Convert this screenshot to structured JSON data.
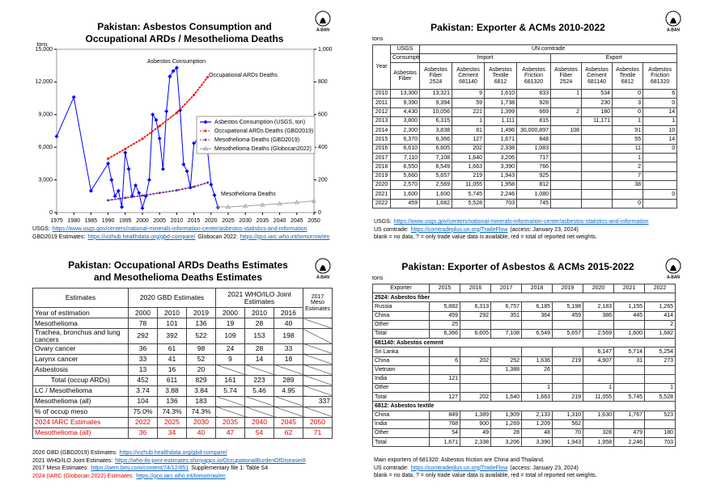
{
  "logo": "A-BAN",
  "chart_data": {
    "type": "line",
    "title": [
      "Pakistan: Asbestos Consumption and",
      "Occupational ARDs / Mesothelioma Deaths"
    ],
    "y_label": "tons",
    "xlim": [
      1975,
      2050
    ],
    "xticks": [
      1975,
      1980,
      1985,
      1990,
      1995,
      2000,
      2005,
      2010,
      2015,
      2020,
      2025,
      2030,
      2035,
      2040,
      2045,
      2050
    ],
    "ylim": [
      0,
      15000
    ],
    "yticks": [
      0,
      {
        "value": 3000,
        "label": "3,000"
      },
      {
        "value": 6000,
        "label": "6,000"
      },
      {
        "value": 9000,
        "label": "9,000"
      },
      {
        "value": 12000,
        "label": "12,000"
      },
      {
        "value": 15000,
        "label": "15,000"
      }
    ],
    "y2lim": [
      0,
      1000
    ],
    "y2ticks": [
      0,
      200,
      400,
      600,
      800,
      {
        "value": 1000,
        "label": "1,000"
      }
    ],
    "grid": false,
    "legend": "right",
    "annotations": [
      "Asbestos Consumption",
      "Occupational ARDs Deaths",
      "Mesothelioma Deaths"
    ],
    "series": [
      {
        "name": "Asbestos Consumption (USGS, ton)",
        "color": "#0000ff",
        "marker": "diamond",
        "line_style": "solid",
        "x": [
          1975,
          1980,
          1985,
          1990,
          1991,
          1992,
          1993,
          1994,
          1995,
          1996,
          1997,
          1998,
          1999,
          2000,
          2001,
          2002,
          2003,
          2004,
          2005,
          2006,
          2007,
          2008,
          2009,
          2010,
          2011,
          2012,
          2013,
          2014,
          2015,
          2016,
          2017,
          2018,
          2019,
          2020,
          2021,
          2022
        ],
        "values": [
          7000,
          10600,
          2000,
          4500,
          3000,
          1500,
          2000,
          500,
          5500,
          4000,
          1500,
          2500,
          1800,
          400,
          1500,
          3000,
          9000,
          8500,
          6800,
          4000,
          9300,
          12500,
          13000,
          13300,
          9390,
          4430,
          3800,
          2300,
          6370,
          6610,
          7110,
          6550,
          5660,
          2570,
          1600,
          459
        ]
      },
      {
        "name": "Occupational ARDs Deaths (GBD2019)",
        "color": "#ff0000",
        "marker": "circle",
        "line_style": "dotted",
        "axis": "y2",
        "x": [
          1990,
          1995,
          2000,
          2005,
          2010,
          2015,
          2019
        ],
        "values": [
          330,
          390,
          452,
          530,
          611,
          720,
          829
        ]
      },
      {
        "name": "Mesothelioma Deaths (GBD2019)",
        "color": "#7030a0",
        "marker": "circle",
        "line_style": "dotted",
        "axis": "y2",
        "x": [
          1990,
          1995,
          2000,
          2005,
          2010,
          2015,
          2019
        ],
        "values": [
          75,
          90,
          104,
          120,
          136,
          158,
          183
        ]
      },
      {
        "name": "Mesothelioma Deaths (Globocan2022)",
        "color": "#a0a0a0",
        "marker": "triangle",
        "line_style": "solid",
        "axis": "y2",
        "x": [
          2022,
          2025,
          2030,
          2035,
          2040,
          2045,
          2050
        ],
        "values": [
          36,
          34,
          40,
          47,
          54,
          62,
          71
        ]
      }
    ],
    "notes": [
      {
        "parts": [
          {
            "t": "USGS:"
          },
          {
            "u": "https://www.usgs.gov/centers/national-minerals-information-center/asbestos-statistics-and-information"
          }
        ]
      },
      {
        "parts": [
          {
            "t": "GBD2019 Estimates:"
          },
          {
            "u": "https://vizhub.healthdata.org/gbd-compare/"
          },
          {
            "t": "Globocan 2022:"
          },
          {
            "u": "https://gco.iarc.who.int/tomorrow/en"
          }
        ]
      }
    ]
  },
  "exports_table": {
    "title": "Pakistan: Exporter & ACMs 2010-2022",
    "unit": "tons",
    "col_year": "Year",
    "usgs": "USGS",
    "un": "UN comtrade",
    "consumption": "Consumption",
    "import": "Import",
    "export": "Export",
    "usgs_col": "Asbestos Fiber",
    "columns": [
      {
        "name": "Asbestos Fiber",
        "code": "2524"
      },
      {
        "name": "Asbestos Cement",
        "code": "681140"
      },
      {
        "name": "Asbestos Textile",
        "code": "6812"
      },
      {
        "name": "Asbestos Friction",
        "code": "681320"
      }
    ],
    "rows": [
      [
        "2010",
        "13,300",
        "13,321",
        "9",
        "1,610",
        "833",
        "1",
        "534",
        "0",
        "6"
      ],
      [
        "2011",
        "9,390",
        "9,394",
        "59",
        "1,738",
        "928",
        null,
        "230",
        "3",
        "0"
      ],
      [
        "2012",
        "4,430",
        "10,056",
        "221",
        "1,399",
        "669",
        "2",
        "180",
        "0",
        "14"
      ],
      [
        "2013",
        "3,800",
        "6,315",
        "1",
        "1,111",
        "815",
        null,
        "11,171",
        "1",
        "1"
      ],
      [
        "2014",
        "2,300",
        "3,838",
        "81",
        "1,496",
        "30,000,897",
        "108",
        null,
        "91",
        "10"
      ],
      [
        "2015",
        "6,370",
        "6,366",
        "127",
        "1,671",
        "848",
        null,
        null,
        "55",
        "14"
      ],
      [
        "2016",
        "6,610",
        "6,605",
        "202",
        "2,338",
        "1,083",
        null,
        null,
        "11",
        "0"
      ],
      [
        "2017",
        "7,110",
        "7,108",
        "1,640",
        "3,206",
        "717",
        null,
        null,
        "1",
        null
      ],
      [
        "2018",
        "6,550",
        "6,549",
        "1,663",
        "3,390",
        "766",
        null,
        null,
        "2",
        null
      ],
      [
        "2019",
        "5,660",
        "5,657",
        "219",
        "1,943",
        "925",
        null,
        null,
        "7",
        null
      ],
      [
        "2020",
        "2,570",
        "2,569",
        "11,055",
        "1,958",
        "812",
        null,
        null,
        "38",
        null
      ],
      [
        "2021",
        "1,600",
        "1,600",
        "5,745",
        "2,246",
        "1,080",
        null,
        null,
        null,
        "0"
      ],
      [
        "2022",
        "459",
        "1,682",
        "5,528",
        "703",
        "745",
        null,
        null,
        "0",
        null
      ]
    ],
    "notes": [
      {
        "parts": [
          {
            "t": "USGS:"
          },
          {
            "u": "https://www.usgs.gov/centers/national-minerals-information-center/asbestos-statistics-and-information"
          }
        ]
      },
      {
        "parts": [
          {
            "t": "US comtrade:"
          },
          {
            "u": "https://comtradeplus.un.org/TradeFlow"
          },
          {
            "t": "(access: January 23, 2024)"
          }
        ]
      },
      {
        "parts": [
          {
            "t": "blank = no data, ? = only trade value data is available, red = total of reported net weights."
          }
        ]
      }
    ]
  },
  "gbd_table": {
    "title": [
      "Pakistan: Occupational ARDs Deaths Estimates",
      "and Mesothelioma Deaths Estimates"
    ],
    "col_label": "Estimates",
    "groups": [
      "2020 GBD Estimates",
      "2021 WHO/ILO Joint Estimates",
      "2017 Meso Estimates"
    ],
    "year_row": {
      "label": "Year of estimation",
      "values": [
        "2000",
        "2010",
        "2019",
        "2000",
        "2010",
        "2016"
      ]
    },
    "rows": [
      {
        "label": "Mesothelioma",
        "values": [
          "78",
          "101",
          "136",
          "19",
          "28",
          "40"
        ],
        "meso": null
      },
      {
        "label": "Trachea, bronchus and lung cancers",
        "values": [
          "292",
          "392",
          "522",
          "109",
          "153",
          "198"
        ],
        "meso": null
      },
      {
        "label": "Ovary cancer",
        "values": [
          "36",
          "61",
          "98",
          "24",
          "28",
          "33"
        ],
        "meso": null
      },
      {
        "label": "Larynx cancer",
        "values": [
          "33",
          "41",
          "52",
          "9",
          "14",
          "18"
        ],
        "meso": null
      },
      {
        "label": "Asbestosis",
        "values": [
          "13",
          "16",
          "20",
          null,
          null,
          null
        ],
        "meso": null
      },
      {
        "label": "Total (occup ARDs)",
        "values": [
          "452",
          "611",
          "829",
          "161",
          "223",
          "289"
        ],
        "meso": null
      },
      {
        "label": "LC / Mesothelioma",
        "values": [
          "3.74",
          "3.88",
          "3.84",
          "5.74",
          "5.46",
          "4.95"
        ],
        "meso": null
      },
      {
        "label": "Mesothelioma (all)",
        "values": [
          "104",
          "136",
          "183",
          null,
          null,
          null
        ],
        "meso": "337"
      },
      {
        "label": "% of occup meso",
        "values": [
          "75.0%",
          "74.3%",
          "74.3%",
          null,
          null,
          null
        ],
        "meso": null
      }
    ],
    "iarc_rows": [
      {
        "label": "2024 IARC Estimates",
        "values": [
          "2022",
          "2025",
          "2030",
          "2035",
          "2040",
          "2045",
          "2050"
        ],
        "color": "#e00000"
      },
      {
        "label": "Mesothelioma (all)",
        "values": [
          "36",
          "34",
          "40",
          "47",
          "54",
          "62",
          "71"
        ],
        "color": "#e00000"
      }
    ],
    "notes": [
      {
        "parts": [
          {
            "t": "2020 GBD (GBD2019) Estimates:"
          },
          {
            "u": "https://vizhub.healthdata.org/gbd-compare/"
          }
        ]
      },
      {
        "parts": [
          {
            "t": "2021 WHO/ILO Joint Estimates:"
          },
          {
            "u": "https://who-ilo-joint-estimates.shinyapps.io/OccupationalBurdenOfDisease/#"
          }
        ]
      },
      {
        "parts": [
          {
            "t": "2017 Meso Estimates:"
          },
          {
            "u": "https://oem.bmj.com/content/74/12/851"
          },
          {
            "t": "Supplementary file 1: Table S4"
          }
        ]
      },
      {
        "parts": [
          {
            "t": "2024 (IARC (Globocan 2022) Estimates:"
          },
          {
            "u": "https://gco.iarc.who.int/tomorrow/en"
          }
        ],
        "color": "#e00000"
      }
    ]
  },
  "exporter_table": {
    "title": "Pakistan: Exporter of Asbestos & ACMs 2015-2022",
    "unit": "tons",
    "columns": [
      "Exporter",
      "2015",
      "2016",
      "2017",
      "2018",
      "2019",
      "2020",
      "2021",
      "2022"
    ],
    "sections": [
      {
        "title": "2524: Asbestos fiber",
        "rows": [
          [
            "Russia",
            "5,882",
            "6,313",
            "6,757",
            "6,185",
            "5,198",
            "2,183",
            "1,155",
            "1,265"
          ],
          [
            "China",
            "459",
            "292",
            "351",
            "364",
            "459",
            "386",
            "445",
            "414"
          ],
          [
            "Other",
            "25",
            null,
            null,
            null,
            null,
            null,
            null,
            "2"
          ],
          [
            "Total",
            "6,366",
            "6,605",
            "7,108",
            "6,549",
            "5,657",
            "2,569",
            "1,600",
            "1,682"
          ]
        ]
      },
      {
        "title": "681140: Asbestos cement",
        "rows": [
          [
            "Sri Lanka",
            null,
            null,
            null,
            null,
            null,
            "6,147",
            "5,714",
            "5,254"
          ],
          [
            "China",
            "6",
            "202",
            "252",
            "1,636",
            "219",
            "4,907",
            "31",
            "273"
          ],
          [
            "Vietnam",
            null,
            null,
            "1,388",
            "26",
            null,
            null,
            null,
            null
          ],
          [
            "India",
            "121",
            null,
            null,
            null,
            null,
            null,
            null,
            null
          ],
          [
            "Other",
            null,
            null,
            null,
            "1",
            null,
            "1",
            null,
            "1"
          ],
          [
            "Total",
            "127",
            "202",
            "1,640",
            "1,663",
            "219",
            "11,055",
            "5,745",
            "5,528"
          ]
        ]
      },
      {
        "title": "6812: Asbestos textile",
        "rows": [
          [
            "China",
            "849",
            "1,389",
            "1,909",
            "2,133",
            "1,310",
            "1,630",
            "1,767",
            "523"
          ],
          [
            "India",
            "768",
            "900",
            "1,269",
            "1,209",
            "562",
            null,
            null,
            null
          ],
          [
            "Other",
            "54",
            "49",
            "28",
            "48",
            "70",
            "328",
            "479",
            "180"
          ],
          [
            "Total",
            "1,671",
            "2,338",
            "3,206",
            "3,390",
            "1,943",
            "1,958",
            "2,246",
            "703"
          ]
        ]
      }
    ],
    "notes": [
      {
        "parts": [
          {
            "t": "Main exporters of 681320: Asbestos friction are China and Thailand."
          }
        ]
      },
      {
        "parts": [
          {
            "t": "US comtrade:"
          },
          {
            "u": "https://comtradeplus.un.org/TradeFlow"
          },
          {
            "t": "(access: January 23, 2024)"
          }
        ]
      },
      {
        "parts": [
          {
            "t": "blank = no data, ? = only trade value data is available, red = total of reported net weights."
          }
        ]
      }
    ]
  }
}
